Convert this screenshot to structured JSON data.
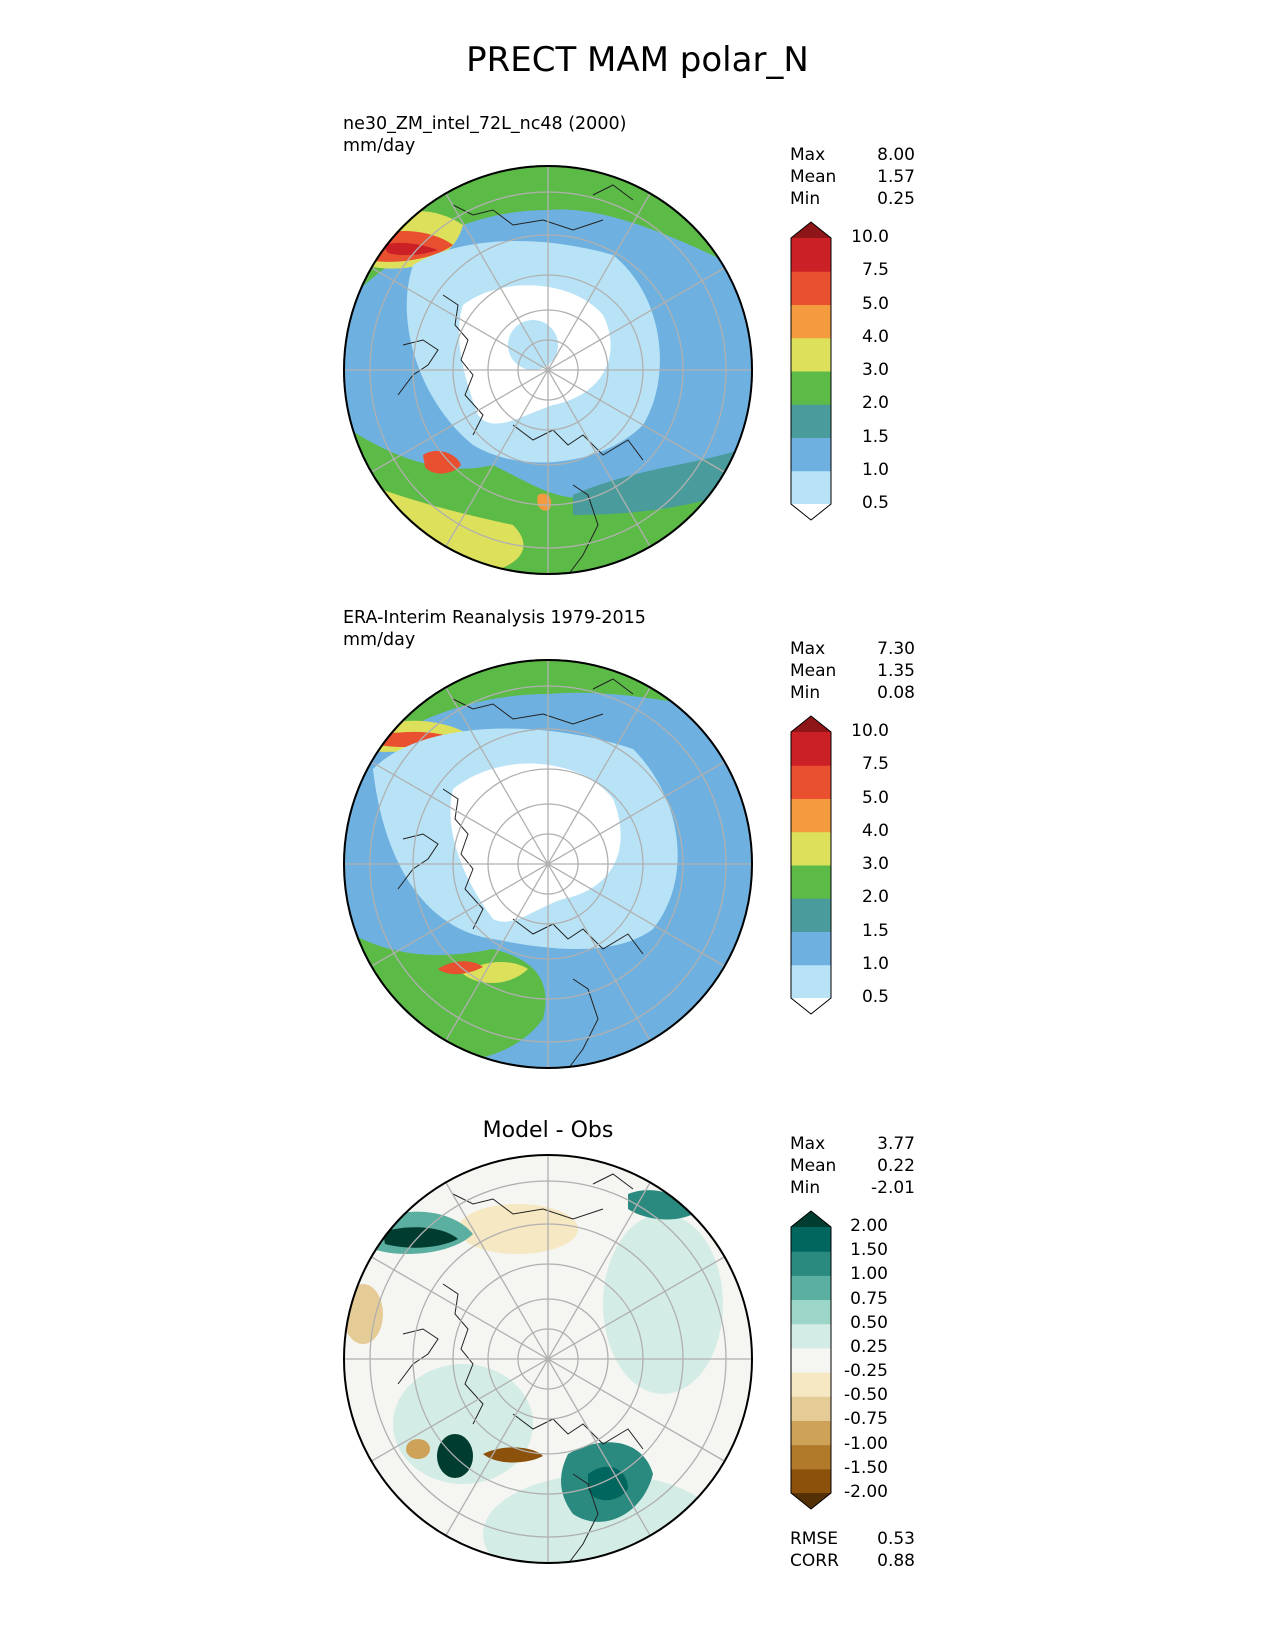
{
  "figure": {
    "title": "PRECT MAM polar_N"
  },
  "chart_data": [
    {
      "type": "heatmap",
      "projection": "north-polar-stereographic",
      "title": "ne30_ZM_intel_72L_nc48 (2000)",
      "units": "mm/day",
      "stats": {
        "max_label": "Max",
        "max": "8.00",
        "mean_label": "Mean",
        "mean": "1.57",
        "min_label": "Min",
        "min": "0.25"
      },
      "colorbar": {
        "levels": [
          "0.5",
          "1.0",
          "1.5",
          "2.0",
          "3.0",
          "4.0",
          "5.0",
          "7.5",
          "10.0"
        ],
        "colors": [
          "#ffffff",
          "#b8e3f7",
          "#6eb1e0",
          "#4a9b9b",
          "#5cba47",
          "#dde05a",
          "#f49b3f",
          "#e85030",
          "#cc2027",
          "#8e1518"
        ],
        "extend": "both"
      },
      "regions_description": "low precipitation over Arctic Ocean, bands of heavy rain over North Pacific and North Atlantic storm tracks"
    },
    {
      "type": "heatmap",
      "projection": "north-polar-stereographic",
      "title": "ERA-Interim Reanalysis 1979-2015",
      "units": "mm/day",
      "stats": {
        "max_label": "Max",
        "max": "7.30",
        "mean_label": "Mean",
        "mean": "1.35",
        "min_label": "Min",
        "min": "0.08"
      },
      "colorbar": {
        "levels": [
          "0.5",
          "1.0",
          "1.5",
          "2.0",
          "3.0",
          "4.0",
          "5.0",
          "7.5",
          "10.0"
        ],
        "colors": [
          "#ffffff",
          "#b8e3f7",
          "#6eb1e0",
          "#4a9b9b",
          "#5cba47",
          "#dde05a",
          "#f49b3f",
          "#e85030",
          "#cc2027",
          "#8e1518"
        ],
        "extend": "both"
      }
    },
    {
      "type": "heatmap",
      "projection": "north-polar-stereographic",
      "title": "Model - Obs",
      "stats": {
        "max_label": "Max",
        "max": "3.77",
        "mean_label": "Mean",
        "mean": "0.22",
        "min_label": "Min",
        "min": "-2.01"
      },
      "metrics": {
        "rmse_label": "RMSE",
        "rmse": "0.53",
        "corr_label": "CORR",
        "corr": "0.88"
      },
      "colorbar": {
        "levels": [
          "-2.00",
          "-1.50",
          "-1.00",
          "-0.75",
          "-0.50",
          "-0.25",
          "0.25",
          "0.50",
          "0.75",
          "1.00",
          "1.50",
          "2.00"
        ],
        "colors": [
          "#543005",
          "#8c510a",
          "#b07a2a",
          "#cfa25a",
          "#e5cb95",
          "#f6e8c3",
          "#f5f5f2",
          "#d4ece6",
          "#9bd6c9",
          "#5aafa0",
          "#2a8a7f",
          "#01665e",
          "#003c30"
        ],
        "extend": "both"
      }
    }
  ]
}
